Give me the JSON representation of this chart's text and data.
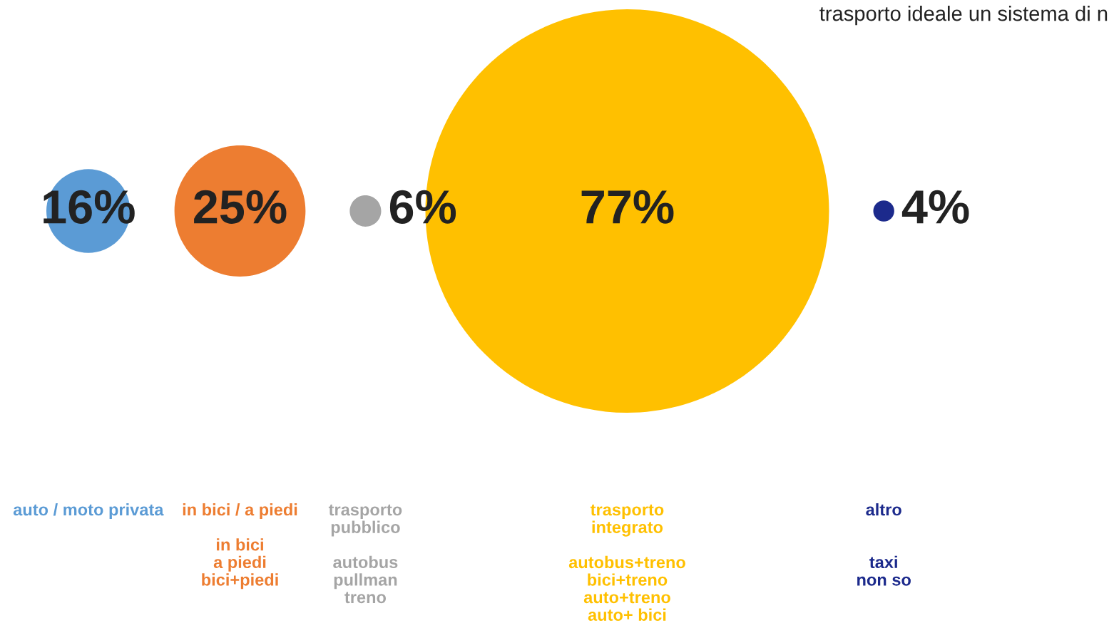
{
  "chart_data": {
    "type": "other",
    "categories": [
      "auto / moto privata",
      "in bici / a piedi\n\nin bici\na piedi\nbici+piedi",
      "trasporto\npubblico\n\nautobus\npullman\ntreno",
      "trasporto\nintegrato\n\nautobus+treno\nbici+treno\nauto+treno\nauto+ bici",
      "altro\n\n\ntaxi\nnon so"
    ],
    "values": [
      16,
      25,
      6,
      77,
      4
    ],
    "value_labels": [
      "16%",
      "25%",
      "6%",
      "77%",
      "4%"
    ],
    "colors": [
      "#5b9bd5",
      "#ed7d31",
      "#a5a5a5",
      "#ffc000",
      "#1c2a8c"
    ],
    "annotations": [
      "trasporto ideale un sistema di n"
    ]
  }
}
